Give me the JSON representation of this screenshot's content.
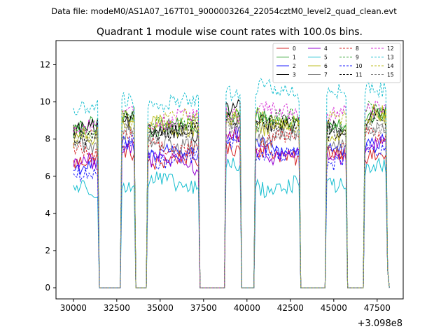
{
  "chart_data": {
    "type": "line",
    "suptitle": "Data file: modeM0/AS1A07_167T01_9000003264_22054cztM0_level2_quad_clean.evt",
    "title": "Quadrant 1 module wise count rates with 100.0s bins.",
    "xlabel": "",
    "ylabel": "",
    "x_offset_label": "+3.098e8",
    "xlim": [
      29000,
      49000
    ],
    "ylim": [
      -0.6,
      13.3
    ],
    "x_ticks": [
      30000,
      32500,
      35000,
      37500,
      40000,
      42500,
      45000,
      47500
    ],
    "x_tick_labels": [
      "30000",
      "32500",
      "35000",
      "37500",
      "40000",
      "42500",
      "45000",
      "47500"
    ],
    "y_ticks": [
      0,
      2,
      4,
      6,
      8,
      10,
      12
    ],
    "y_tick_labels": [
      "0",
      "2",
      "4",
      "6",
      "8",
      "10",
      "12"
    ],
    "legend_position": "top-right",
    "segments": [
      {
        "start": 30000,
        "end": 31400
      },
      {
        "start": 32800,
        "end": 33500
      },
      {
        "start": 34300,
        "end": 37200
      },
      {
        "start": 38800,
        "end": 39600
      },
      {
        "start": 40500,
        "end": 43000
      },
      {
        "start": 44600,
        "end": 45700
      },
      {
        "start": 46800,
        "end": 48100
      }
    ],
    "gap_value": 0,
    "series": [
      {
        "name": "0",
        "color": "#d62728",
        "dashed": false,
        "levels": [
          6.9,
          7.4,
          6.8,
          7.6,
          7.2,
          7.1,
          7.3
        ]
      },
      {
        "name": "1",
        "color": "#2ca02c",
        "dashed": false,
        "levels": [
          8.6,
          9.3,
          8.6,
          9.2,
          9.1,
          8.7,
          9.4
        ]
      },
      {
        "name": "2",
        "color": "#1f1fff",
        "dashed": false,
        "levels": [
          6.4,
          7.9,
          7.2,
          8.1,
          7.6,
          7.3,
          7.8
        ]
      },
      {
        "name": "3",
        "color": "#000000",
        "dashed": false,
        "levels": [
          8.4,
          9.1,
          8.3,
          9.5,
          8.9,
          8.5,
          9.3
        ]
      },
      {
        "name": "4",
        "color": "#9400d3",
        "dashed": false,
        "levels": [
          6.6,
          7.8,
          6.7,
          8.0,
          7.3,
          7.0,
          7.6
        ]
      },
      {
        "name": "5",
        "color": "#17becf",
        "dashed": false,
        "levels": [
          5.2,
          5.5,
          5.6,
          6.4,
          5.5,
          5.7,
          6.3
        ]
      },
      {
        "name": "6",
        "color": "#bcbd22",
        "dashed": false,
        "levels": [
          8.0,
          9.0,
          8.7,
          8.9,
          8.8,
          8.4,
          9.2
        ]
      },
      {
        "name": "7",
        "color": "#7f7f7f",
        "dashed": false,
        "levels": [
          7.6,
          8.4,
          7.8,
          8.6,
          8.1,
          7.9,
          8.5
        ]
      },
      {
        "name": "8",
        "color": "#d62728",
        "dashed": true,
        "levels": [
          7.4,
          8.0,
          7.6,
          8.2,
          7.9,
          7.5,
          8.0
        ]
      },
      {
        "name": "9",
        "color": "#2ca02c",
        "dashed": true,
        "levels": [
          8.5,
          9.2,
          8.9,
          9.4,
          9.0,
          8.8,
          9.5
        ]
      },
      {
        "name": "10",
        "color": "#1f1fff",
        "dashed": true,
        "levels": [
          6.2,
          7.6,
          7.0,
          7.9,
          7.0,
          6.8,
          7.5
        ]
      },
      {
        "name": "11",
        "color": "#000000",
        "dashed": true,
        "levels": [
          8.3,
          9.0,
          8.5,
          9.3,
          8.7,
          8.4,
          9.1
        ]
      },
      {
        "name": "12",
        "color": "#d62fd6",
        "dashed": true,
        "levels": [
          8.8,
          9.5,
          9.1,
          9.6,
          9.4,
          9.2,
          9.8
        ]
      },
      {
        "name": "13",
        "color": "#17becf",
        "dashed": true,
        "levels": [
          9.8,
          10.0,
          9.9,
          10.7,
          10.6,
          10.3,
          10.9
        ]
      },
      {
        "name": "14",
        "color": "#bcbd22",
        "dashed": true,
        "levels": [
          8.2,
          9.1,
          9.0,
          9.3,
          9.0,
          8.9,
          9.4
        ]
      },
      {
        "name": "15",
        "color": "#7f7f7f",
        "dashed": true,
        "levels": [
          7.9,
          8.7,
          8.2,
          8.8,
          8.4,
          8.3,
          8.8
        ]
      }
    ]
  }
}
